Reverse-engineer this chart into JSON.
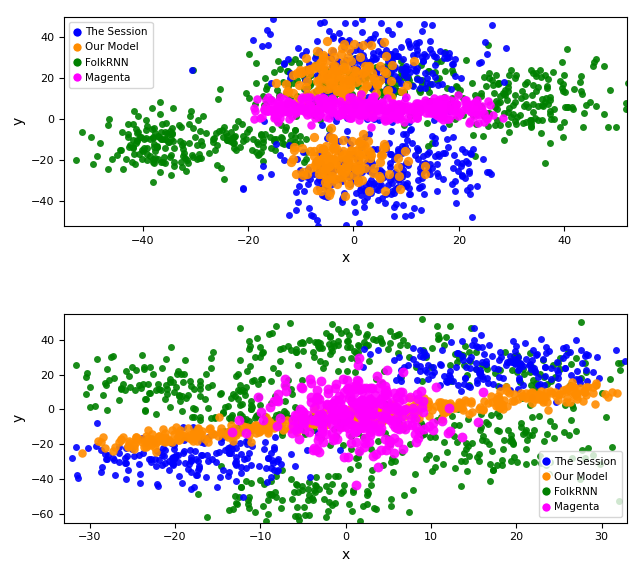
{
  "top_plot": {
    "xlim": [
      -55,
      52
    ],
    "ylim": [
      -52,
      50
    ],
    "xticks": [
      -40,
      -20,
      0,
      20,
      40
    ],
    "yticks": [
      -40,
      -20,
      0,
      20,
      40
    ],
    "xlabel": "x",
    "ylabel": "y",
    "legend_loc": "upper left"
  },
  "bottom_plot": {
    "xlim": [
      -33,
      33
    ],
    "ylim": [
      -65,
      55
    ],
    "xticks": [
      -30,
      -20,
      -10,
      0,
      10,
      20,
      30
    ],
    "yticks": [
      -60,
      -40,
      -20,
      0,
      20,
      40
    ],
    "xlabel": "x",
    "ylabel": "y",
    "legend_loc": "lower right"
  },
  "colors": {
    "session": "#0000ff",
    "model": "#ff8c00",
    "folkrnn": "#008000",
    "magenta": "#ff00ff"
  },
  "labels": {
    "session": "The Session",
    "model": "Our Model",
    "folkrnn": "FolkRNN",
    "magenta": "Magenta"
  },
  "marker_size": 25,
  "alpha": 0.9
}
